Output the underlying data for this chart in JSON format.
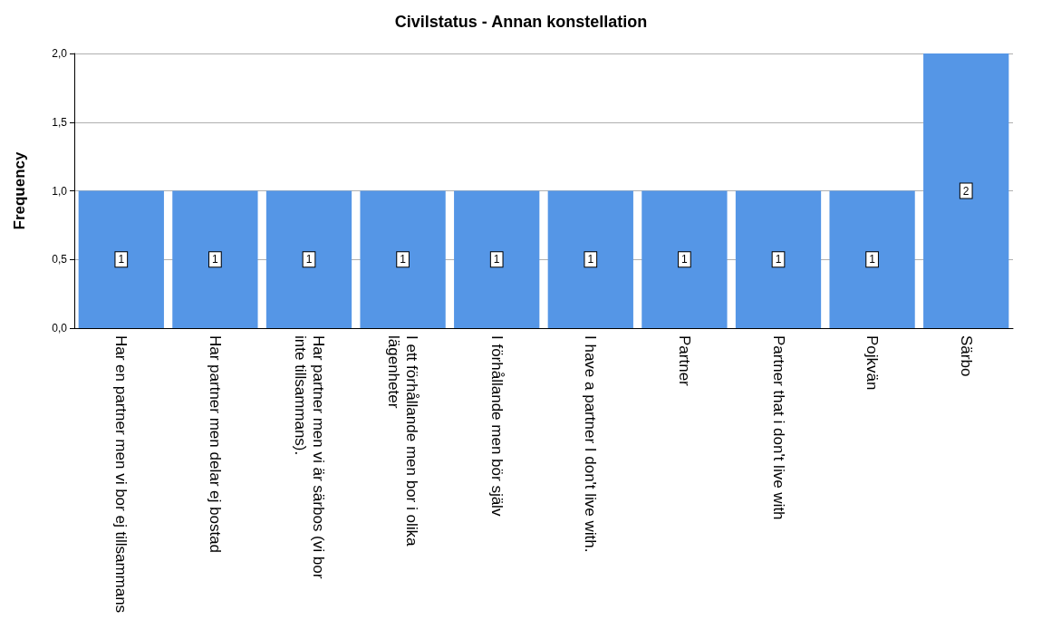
{
  "chart_data": {
    "type": "bar",
    "title": "Civilstatus - Annan konstellation",
    "ylabel": "Frequency",
    "categories": [
      "Har en partner men vi bor ej tillsammans",
      "Har partner men delar ej bostad",
      "Har partner men vi är särbos (vi bor inte tillsammans).",
      "I ett förhållande men bor i olika lägenheter",
      "I förhållande men bör själv",
      "I have a partner I don't live with.",
      "Partner",
      "Partner that i don't live with",
      "Pojkvän",
      "Särbo"
    ],
    "values": [
      1,
      1,
      1,
      1,
      1,
      1,
      1,
      1,
      1,
      2
    ],
    "color": "#5596e6",
    "ylim": [
      0,
      2
    ],
    "yticks": [
      {
        "value": 0,
        "label": "0,0"
      },
      {
        "value": 0.5,
        "label": "0,5"
      },
      {
        "value": 1,
        "label": "1,0"
      },
      {
        "value": 1.5,
        "label": "1,5"
      },
      {
        "value": 2,
        "label": "2,0"
      }
    ],
    "grid": "y",
    "data_labels": true
  }
}
